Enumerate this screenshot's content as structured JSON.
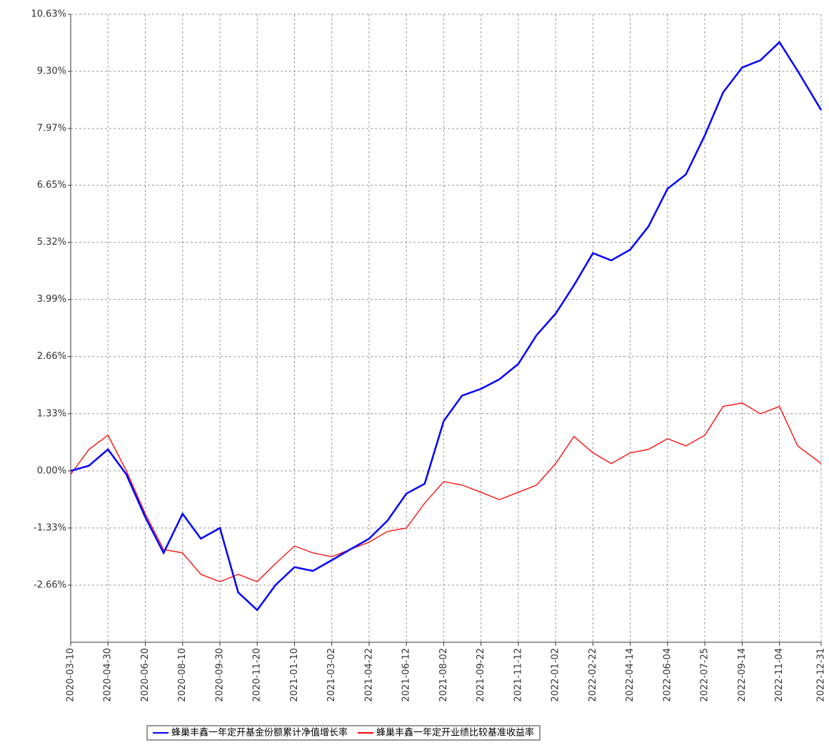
{
  "chart_data": {
    "type": "line",
    "x": [
      "2020-03-10",
      "2020-04-04",
      "2020-04-30",
      "2020-05-25",
      "2020-06-20",
      "2020-07-15",
      "2020-08-10",
      "2020-09-04",
      "2020-09-30",
      "2020-10-25",
      "2020-11-20",
      "2020-12-15",
      "2021-01-10",
      "2021-02-04",
      "2021-03-02",
      "2021-03-27",
      "2021-04-22",
      "2021-05-17",
      "2021-06-12",
      "2021-07-07",
      "2021-08-02",
      "2021-08-27",
      "2021-09-22",
      "2021-10-17",
      "2021-11-12",
      "2021-12-07",
      "2022-01-02",
      "2022-01-27",
      "2022-02-22",
      "2022-03-19",
      "2022-04-14",
      "2022-05-09",
      "2022-06-04",
      "2022-06-29",
      "2022-07-25",
      "2022-08-19",
      "2022-09-14",
      "2022-10-09",
      "2022-11-04",
      "2022-11-29",
      "2022-12-31"
    ],
    "series": [
      {
        "name": "蜂巢丰鑫一年定开基金份额累计净值增长率",
        "color": "#0000ff",
        "values": [
          0.0,
          0.12,
          0.5,
          -0.08,
          -1.08,
          -1.91,
          -1.0,
          -1.58,
          -1.33,
          -2.83,
          -3.24,
          -2.66,
          -2.24,
          -2.33,
          -2.08,
          -1.83,
          -1.58,
          -1.16,
          -0.53,
          -0.3,
          1.16,
          1.75,
          1.91,
          2.13,
          2.49,
          3.16,
          3.66,
          4.32,
          5.07,
          4.9,
          5.15,
          5.69,
          6.57,
          6.9,
          7.81,
          8.81,
          9.39,
          9.56,
          9.98,
          9.31,
          8.4
        ]
      },
      {
        "name": "蜂巢丰鑫一年定开业绩比较基准收益率",
        "color": "#ff0000",
        "values": [
          -0.08,
          0.5,
          0.83,
          0.0,
          -1.0,
          -1.83,
          -1.91,
          -2.41,
          -2.58,
          -2.41,
          -2.58,
          -2.16,
          -1.75,
          -1.91,
          -2.0,
          -1.83,
          -1.66,
          -1.41,
          -1.33,
          -0.75,
          -0.25,
          -0.33,
          -0.5,
          -0.67,
          -0.5,
          -0.33,
          0.17,
          0.8,
          0.42,
          0.17,
          0.42,
          0.5,
          0.75,
          0.58,
          0.83,
          1.5,
          1.58,
          1.33,
          1.5,
          0.58,
          0.17
        ]
      }
    ],
    "xlim": [
      "2020-03-10",
      "2022-12-31"
    ],
    "xticks": [
      "2020-03-10",
      "2020-04-30",
      "2020-06-20",
      "2020-08-10",
      "2020-09-30",
      "2020-11-20",
      "2021-01-10",
      "2021-03-02",
      "2021-04-22",
      "2021-06-12",
      "2021-08-02",
      "2021-09-22",
      "2021-11-12",
      "2022-01-02",
      "2022-02-22",
      "2022-04-14",
      "2022-06-04",
      "2022-07-25",
      "2022-09-14",
      "2022-11-04",
      "2022-12-31"
    ],
    "ylim": [
      -3.99,
      10.63
    ],
    "yticks": [
      {
        "value": -2.66,
        "label": "-2.66%"
      },
      {
        "value": -1.33,
        "label": "-1.33%"
      },
      {
        "value": 0,
        "label": "0.00%"
      },
      {
        "value": 1.33,
        "label": "1.33%"
      },
      {
        "value": 2.66,
        "label": "2.66%"
      },
      {
        "value": 3.99,
        "label": "3.99%"
      },
      {
        "value": 5.32,
        "label": "5.32%"
      },
      {
        "value": 6.65,
        "label": "6.65%"
      },
      {
        "value": 7.97,
        "label": "7.97%"
      },
      {
        "value": 9.3,
        "label": "9.30%"
      },
      {
        "value": 10.63,
        "label": "10.63%"
      }
    ],
    "grid": true,
    "legend": "bottom"
  }
}
